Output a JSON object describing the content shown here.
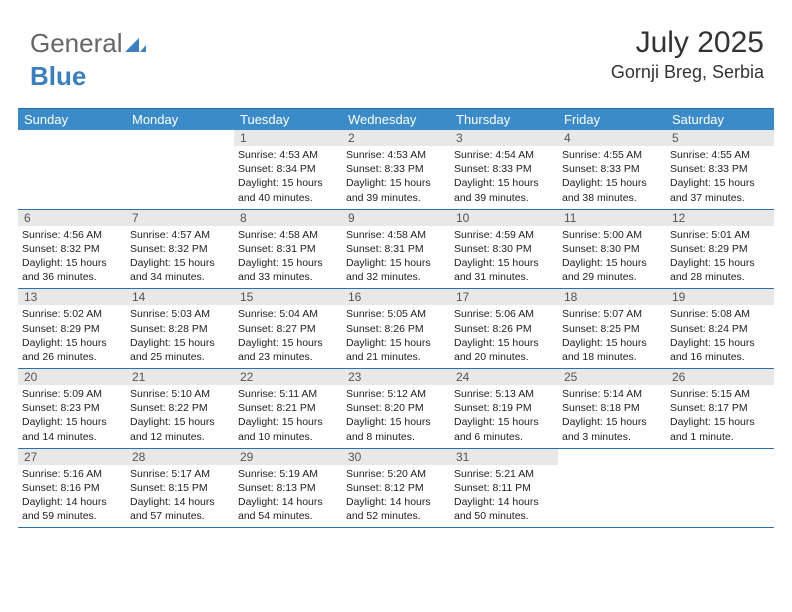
{
  "brand": {
    "part1": "General",
    "part2": "Blue"
  },
  "header": {
    "month_title": "July 2025",
    "location": "Gornji Breg, Serbia"
  },
  "colors": {
    "header_bar": "#3b8bc9",
    "rule": "#2f6fa8",
    "daynum_bg": "#e8e8e8",
    "text": "#222222"
  },
  "font": {
    "body_pt": 10.5,
    "title_pt": 30,
    "location_pt": 18,
    "header_pt": 13
  },
  "day_labels": [
    "Sunday",
    "Monday",
    "Tuesday",
    "Wednesday",
    "Thursday",
    "Friday",
    "Saturday"
  ],
  "weeks": [
    [
      {
        "n": "",
        "sr": "",
        "ss": "",
        "dl": ""
      },
      {
        "n": "",
        "sr": "",
        "ss": "",
        "dl": ""
      },
      {
        "n": "1",
        "sr": "Sunrise: 4:53 AM",
        "ss": "Sunset: 8:34 PM",
        "dl": "Daylight: 15 hours and 40 minutes."
      },
      {
        "n": "2",
        "sr": "Sunrise: 4:53 AM",
        "ss": "Sunset: 8:33 PM",
        "dl": "Daylight: 15 hours and 39 minutes."
      },
      {
        "n": "3",
        "sr": "Sunrise: 4:54 AM",
        "ss": "Sunset: 8:33 PM",
        "dl": "Daylight: 15 hours and 39 minutes."
      },
      {
        "n": "4",
        "sr": "Sunrise: 4:55 AM",
        "ss": "Sunset: 8:33 PM",
        "dl": "Daylight: 15 hours and 38 minutes."
      },
      {
        "n": "5",
        "sr": "Sunrise: 4:55 AM",
        "ss": "Sunset: 8:33 PM",
        "dl": "Daylight: 15 hours and 37 minutes."
      }
    ],
    [
      {
        "n": "6",
        "sr": "Sunrise: 4:56 AM",
        "ss": "Sunset: 8:32 PM",
        "dl": "Daylight: 15 hours and 36 minutes."
      },
      {
        "n": "7",
        "sr": "Sunrise: 4:57 AM",
        "ss": "Sunset: 8:32 PM",
        "dl": "Daylight: 15 hours and 34 minutes."
      },
      {
        "n": "8",
        "sr": "Sunrise: 4:58 AM",
        "ss": "Sunset: 8:31 PM",
        "dl": "Daylight: 15 hours and 33 minutes."
      },
      {
        "n": "9",
        "sr": "Sunrise: 4:58 AM",
        "ss": "Sunset: 8:31 PM",
        "dl": "Daylight: 15 hours and 32 minutes."
      },
      {
        "n": "10",
        "sr": "Sunrise: 4:59 AM",
        "ss": "Sunset: 8:30 PM",
        "dl": "Daylight: 15 hours and 31 minutes."
      },
      {
        "n": "11",
        "sr": "Sunrise: 5:00 AM",
        "ss": "Sunset: 8:30 PM",
        "dl": "Daylight: 15 hours and 29 minutes."
      },
      {
        "n": "12",
        "sr": "Sunrise: 5:01 AM",
        "ss": "Sunset: 8:29 PM",
        "dl": "Daylight: 15 hours and 28 minutes."
      }
    ],
    [
      {
        "n": "13",
        "sr": "Sunrise: 5:02 AM",
        "ss": "Sunset: 8:29 PM",
        "dl": "Daylight: 15 hours and 26 minutes."
      },
      {
        "n": "14",
        "sr": "Sunrise: 5:03 AM",
        "ss": "Sunset: 8:28 PM",
        "dl": "Daylight: 15 hours and 25 minutes."
      },
      {
        "n": "15",
        "sr": "Sunrise: 5:04 AM",
        "ss": "Sunset: 8:27 PM",
        "dl": "Daylight: 15 hours and 23 minutes."
      },
      {
        "n": "16",
        "sr": "Sunrise: 5:05 AM",
        "ss": "Sunset: 8:26 PM",
        "dl": "Daylight: 15 hours and 21 minutes."
      },
      {
        "n": "17",
        "sr": "Sunrise: 5:06 AM",
        "ss": "Sunset: 8:26 PM",
        "dl": "Daylight: 15 hours and 20 minutes."
      },
      {
        "n": "18",
        "sr": "Sunrise: 5:07 AM",
        "ss": "Sunset: 8:25 PM",
        "dl": "Daylight: 15 hours and 18 minutes."
      },
      {
        "n": "19",
        "sr": "Sunrise: 5:08 AM",
        "ss": "Sunset: 8:24 PM",
        "dl": "Daylight: 15 hours and 16 minutes."
      }
    ],
    [
      {
        "n": "20",
        "sr": "Sunrise: 5:09 AM",
        "ss": "Sunset: 8:23 PM",
        "dl": "Daylight: 15 hours and 14 minutes."
      },
      {
        "n": "21",
        "sr": "Sunrise: 5:10 AM",
        "ss": "Sunset: 8:22 PM",
        "dl": "Daylight: 15 hours and 12 minutes."
      },
      {
        "n": "22",
        "sr": "Sunrise: 5:11 AM",
        "ss": "Sunset: 8:21 PM",
        "dl": "Daylight: 15 hours and 10 minutes."
      },
      {
        "n": "23",
        "sr": "Sunrise: 5:12 AM",
        "ss": "Sunset: 8:20 PM",
        "dl": "Daylight: 15 hours and 8 minutes."
      },
      {
        "n": "24",
        "sr": "Sunrise: 5:13 AM",
        "ss": "Sunset: 8:19 PM",
        "dl": "Daylight: 15 hours and 6 minutes."
      },
      {
        "n": "25",
        "sr": "Sunrise: 5:14 AM",
        "ss": "Sunset: 8:18 PM",
        "dl": "Daylight: 15 hours and 3 minutes."
      },
      {
        "n": "26",
        "sr": "Sunrise: 5:15 AM",
        "ss": "Sunset: 8:17 PM",
        "dl": "Daylight: 15 hours and 1 minute."
      }
    ],
    [
      {
        "n": "27",
        "sr": "Sunrise: 5:16 AM",
        "ss": "Sunset: 8:16 PM",
        "dl": "Daylight: 14 hours and 59 minutes."
      },
      {
        "n": "28",
        "sr": "Sunrise: 5:17 AM",
        "ss": "Sunset: 8:15 PM",
        "dl": "Daylight: 14 hours and 57 minutes."
      },
      {
        "n": "29",
        "sr": "Sunrise: 5:19 AM",
        "ss": "Sunset: 8:13 PM",
        "dl": "Daylight: 14 hours and 54 minutes."
      },
      {
        "n": "30",
        "sr": "Sunrise: 5:20 AM",
        "ss": "Sunset: 8:12 PM",
        "dl": "Daylight: 14 hours and 52 minutes."
      },
      {
        "n": "31",
        "sr": "Sunrise: 5:21 AM",
        "ss": "Sunset: 8:11 PM",
        "dl": "Daylight: 14 hours and 50 minutes."
      },
      {
        "n": "",
        "sr": "",
        "ss": "",
        "dl": ""
      },
      {
        "n": "",
        "sr": "",
        "ss": "",
        "dl": ""
      }
    ]
  ]
}
